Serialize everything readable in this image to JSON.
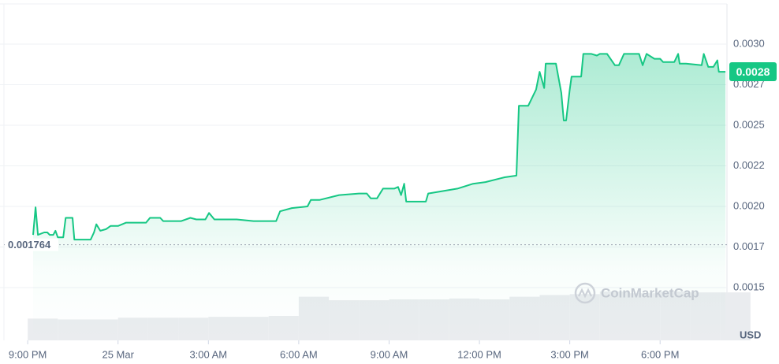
{
  "chart_data": {
    "type": "line",
    "x": [
      0.18,
      0.26,
      0.34,
      0.55,
      0.65,
      0.73,
      0.85,
      0.92,
      1.0,
      1.18,
      1.26,
      1.49,
      1.55,
      2.09,
      2.2,
      2.28,
      2.41,
      2.6,
      2.75,
      3.0,
      3.27,
      3.93,
      4.06,
      4.4,
      4.5,
      5.1,
      5.4,
      5.6,
      5.9,
      6.02,
      6.2,
      6.94,
      7.5,
      8.25,
      8.38,
      8.77,
      9.29,
      9.4,
      9.69,
      10.34,
      11.0,
      11.26,
      11.39,
      11.6,
      11.8,
      12.17,
      12.3,
      12.4,
      12.5,
      12.57,
      13.22,
      13.3,
      14.27,
      14.79,
      15.2,
      15.84,
      16.23,
      16.31,
      16.62,
      16.88,
      17.0,
      17.15,
      17.2,
      17.54,
      17.72,
      17.8,
      17.88,
      18.0,
      18.06,
      18.38,
      18.45,
      18.72,
      18.9,
      19.0,
      19.24,
      19.5,
      19.63,
      19.8,
      20.16,
      20.3,
      20.42,
      20.55,
      20.81,
      21.0,
      21.1,
      21.47,
      21.6,
      21.65,
      21.86,
      22.38,
      22.45,
      22.6,
      22.77,
      22.9,
      22.95,
      23.17
    ],
    "series": [
      {
        "color": "#16c784",
        "values": [
          0.001825,
          0.001995,
          0.001825,
          0.00184,
          0.00184,
          0.001825,
          0.001825,
          0.00185,
          0.00181,
          0.00181,
          0.00193,
          0.00193,
          0.001796,
          0.001796,
          0.00184,
          0.00189,
          0.00185,
          0.00186,
          0.00188,
          0.00188,
          0.0019,
          0.0019,
          0.00193,
          0.00193,
          0.00191,
          0.00191,
          0.00193,
          0.00192,
          0.00192,
          0.00196,
          0.00192,
          0.00192,
          0.00191,
          0.00191,
          0.00197,
          0.00199,
          0.002,
          0.00204,
          0.00204,
          0.00207,
          0.00208,
          0.00208,
          0.00205,
          0.00205,
          0.00211,
          0.00211,
          0.00212,
          0.00207,
          0.00214,
          0.00203,
          0.00203,
          0.00208,
          0.00211,
          0.00214,
          0.00215,
          0.00218,
          0.00219,
          0.00262,
          0.00262,
          0.00272,
          0.00283,
          0.00273,
          0.00288,
          0.00288,
          0.0027,
          0.00253,
          0.00253,
          0.00272,
          0.0028,
          0.0028,
          0.00294,
          0.00294,
          0.00293,
          0.00294,
          0.00294,
          0.00287,
          0.00287,
          0.00294,
          0.00294,
          0.00294,
          0.00287,
          0.00294,
          0.00291,
          0.00291,
          0.00289,
          0.00289,
          0.00294,
          0.00288,
          0.00288,
          0.00287,
          0.00294,
          0.00286,
          0.00286,
          0.0029,
          0.00283,
          0.00283
        ]
      }
    ],
    "volume": {
      "color": "#eaecef",
      "x": [
        0,
        1,
        2,
        3,
        4,
        5,
        6,
        7,
        8,
        9,
        10,
        11,
        12,
        13,
        14,
        15,
        16,
        17,
        18,
        19,
        20,
        21,
        22,
        23
      ],
      "values": [
        25,
        24,
        24,
        26,
        26,
        26,
        27,
        27,
        28,
        50,
        46,
        46,
        47,
        47,
        48,
        47,
        50,
        52,
        53,
        56,
        54,
        56,
        55,
        55
      ]
    },
    "xlim": [
      -0.92,
      23.22
    ],
    "xticks": [
      {
        "value": 0,
        "label": "9:00 PM"
      },
      {
        "value": 3,
        "label": "25 Mar"
      },
      {
        "value": 6,
        "label": "3:00 AM"
      },
      {
        "value": 9,
        "label": "6:00 AM"
      },
      {
        "value": 12,
        "label": "9:00 AM"
      },
      {
        "value": 15,
        "label": "12:00 PM"
      },
      {
        "value": 18,
        "label": "3:00 PM"
      },
      {
        "value": 21,
        "label": "6:00 PM"
      }
    ],
    "ylim": [
      0.001175,
      0.003272
    ],
    "yticks": [
      {
        "value": 0.0015,
        "label": "0.0015"
      },
      {
        "value": 0.00175,
        "label": "0.0017"
      },
      {
        "value": 0.002,
        "label": "0.0020"
      },
      {
        "value": 0.00225,
        "label": "0.0022"
      },
      {
        "value": 0.0025,
        "label": "0.0025"
      },
      {
        "value": 0.00275,
        "label": "0.0027"
      },
      {
        "value": 0.003,
        "label": "0.0030"
      }
    ],
    "grid": true,
    "baseline": 0.001764,
    "price_label": "0.0028",
    "unit": "USD",
    "watermark": "CoinMarketCap"
  }
}
